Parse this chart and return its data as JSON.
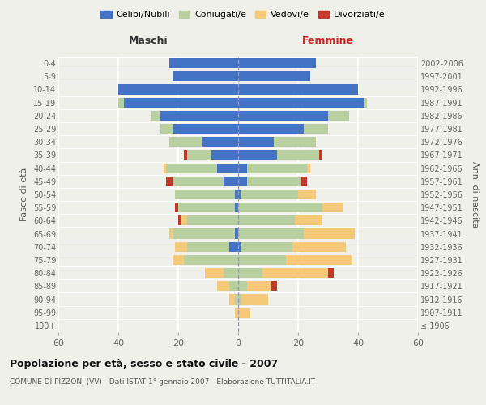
{
  "age_groups": [
    "100+",
    "95-99",
    "90-94",
    "85-89",
    "80-84",
    "75-79",
    "70-74",
    "65-69",
    "60-64",
    "55-59",
    "50-54",
    "45-49",
    "40-44",
    "35-39",
    "30-34",
    "25-29",
    "20-24",
    "15-19",
    "10-14",
    "5-9",
    "0-4"
  ],
  "birth_years": [
    "≤ 1906",
    "1907-1911",
    "1912-1916",
    "1917-1921",
    "1922-1926",
    "1927-1931",
    "1932-1936",
    "1937-1941",
    "1942-1946",
    "1947-1951",
    "1952-1956",
    "1957-1961",
    "1962-1966",
    "1967-1971",
    "1972-1976",
    "1977-1981",
    "1982-1986",
    "1987-1991",
    "1992-1996",
    "1997-2001",
    "2002-2006"
  ],
  "maschi": {
    "celibi": [
      0,
      0,
      0,
      0,
      0,
      0,
      3,
      1,
      0,
      1,
      1,
      5,
      7,
      9,
      12,
      22,
      26,
      38,
      40,
      22,
      23
    ],
    "coniugati": [
      0,
      0,
      1,
      3,
      5,
      18,
      14,
      21,
      17,
      19,
      20,
      17,
      17,
      8,
      11,
      4,
      3,
      2,
      0,
      0,
      0
    ],
    "vedovi": [
      0,
      1,
      2,
      4,
      6,
      4,
      4,
      1,
      2,
      0,
      0,
      0,
      1,
      0,
      0,
      0,
      0,
      0,
      0,
      0,
      0
    ],
    "divorziati": [
      0,
      0,
      0,
      0,
      0,
      0,
      0,
      0,
      1,
      1,
      0,
      2,
      0,
      1,
      0,
      0,
      0,
      0,
      0,
      0,
      0
    ]
  },
  "femmine": {
    "nubili": [
      0,
      0,
      0,
      0,
      0,
      0,
      1,
      0,
      0,
      0,
      1,
      3,
      3,
      13,
      12,
      22,
      30,
      42,
      40,
      24,
      26
    ],
    "coniugate": [
      0,
      0,
      1,
      3,
      8,
      16,
      17,
      22,
      19,
      28,
      19,
      18,
      20,
      14,
      14,
      8,
      7,
      1,
      0,
      0,
      0
    ],
    "vedove": [
      0,
      4,
      9,
      8,
      22,
      22,
      18,
      17,
      9,
      7,
      6,
      0,
      1,
      0,
      0,
      0,
      0,
      0,
      0,
      0,
      0
    ],
    "divorziate": [
      0,
      0,
      0,
      2,
      2,
      0,
      0,
      0,
      0,
      0,
      0,
      2,
      0,
      1,
      0,
      0,
      0,
      0,
      0,
      0,
      0
    ]
  },
  "colors": {
    "celibi_nubili": "#4472c4",
    "coniugati": "#b8cfa0",
    "vedovi": "#f5c97a",
    "divorziati": "#c0392b"
  },
  "title": "Popolazione per età, sesso e stato civile - 2007",
  "subtitle": "COMUNE DI PIZZONI (VV) - Dati ISTAT 1° gennaio 2007 - Elaborazione TUTTITALIA.IT",
  "xlabel_maschi": "Maschi",
  "xlabel_femmine": "Femmine",
  "ylabel": "Fasce di età",
  "ylabel_right": "Anni di nascita",
  "xlim": 60,
  "background_color": "#f0f0eb",
  "legend_labels": [
    "Celibi/Nubili",
    "Coniugati/e",
    "Vedovi/e",
    "Divorziati/e"
  ]
}
